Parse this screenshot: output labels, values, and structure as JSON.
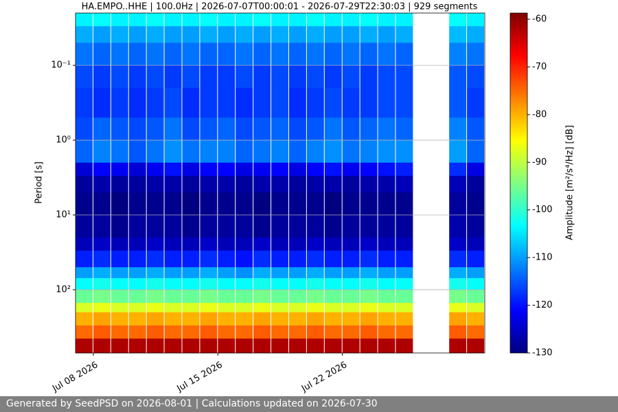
{
  "chart_data": {
    "type": "heatmap",
    "title": "HA.EMPO..HHE | 100.0Hz | 2026-07-07T00:00:01 - 2026-07-29T22:30:03 | 929 segments",
    "ylabel": "Period [s]",
    "colorbar_label": "Amplitude [m²/s⁴/Hz] [dB]",
    "colormap": "jet",
    "x": [
      "2026-07-07",
      "2026-07-08",
      "2026-07-09",
      "2026-07-10",
      "2026-07-11",
      "2026-07-12",
      "2026-07-13",
      "2026-07-14",
      "2026-07-15",
      "2026-07-16",
      "2026-07-17",
      "2026-07-18",
      "2026-07-19",
      "2026-07-20",
      "2026-07-21",
      "2026-07-22",
      "2026-07-23",
      "2026-07-24",
      "2026-07-25",
      "2026-07-26",
      "2026-07-27",
      "2026-07-28",
      "2026-07-29"
    ],
    "xlim": [
      "2026-07-07",
      "2026-07-30"
    ],
    "xticks": [
      {
        "value": "2026-07-08",
        "label": "Jul 08 2026"
      },
      {
        "value": "2026-07-15",
        "label": "Jul 15 2026"
      },
      {
        "value": "2026-07-22",
        "label": "Jul 22 2026"
      }
    ],
    "y_edges": [
      0.02,
      0.03,
      0.05,
      0.1,
      0.2,
      0.5,
      1,
      2,
      3,
      5,
      10,
      20,
      30,
      50,
      70,
      100,
      150,
      200,
      300,
      450,
      700
    ],
    "ylim": [
      0.02,
      700
    ],
    "yscale": "log",
    "y_inverted": true,
    "yticks": [
      {
        "value": 0.1,
        "label": "10⁻¹"
      },
      {
        "value": 1,
        "label": "10⁰"
      },
      {
        "value": 10,
        "label": "10¹"
      },
      {
        "value": 100,
        "label": "10²"
      }
    ],
    "grid": true,
    "clim": [
      -130,
      -58.7
    ],
    "cticks": [
      -60,
      -70,
      -80,
      -90,
      -100,
      -110,
      -120,
      -130
    ],
    "values": [
      [
        -104,
        -103,
        -104,
        -104,
        -103,
        -104,
        -104,
        -103,
        -104,
        -104,
        -103,
        -104,
        -104,
        -103,
        -104,
        -104,
        -103,
        -104,
        -104,
        null,
        null,
        -103,
        -104
      ],
      [
        -109,
        -110,
        -109,
        -110,
        -109,
        -110,
        -110,
        -109,
        -110,
        -109,
        -110,
        -109,
        -110,
        -109,
        -110,
        -110,
        -109,
        -110,
        -109,
        null,
        null,
        -108,
        -109
      ],
      [
        -113,
        -114,
        -113,
        -114,
        -113,
        -114,
        -113,
        -114,
        -114,
        -113,
        -114,
        -113,
        -114,
        -113,
        -114,
        -113,
        -114,
        -113,
        -114,
        null,
        null,
        -112,
        -113
      ],
      [
        -116,
        -117,
        -116,
        -117,
        -116,
        -117,
        -116,
        -117,
        -117,
        -116,
        -117,
        -116,
        -117,
        -116,
        -117,
        -116,
        -117,
        -116,
        -116,
        null,
        null,
        -115,
        -116
      ],
      [
        -117,
        -118,
        -117,
        -118,
        -117,
        -116,
        -118,
        -117,
        -117,
        -118,
        -117,
        -116,
        -118,
        -117,
        -116,
        -117,
        -117,
        -116,
        -116,
        null,
        null,
        -115,
        -117
      ],
      [
        -116,
        -114,
        -115,
        -116,
        -115,
        -113,
        -116,
        -115,
        -114,
        -116,
        -115,
        -114,
        -116,
        -115,
        -113,
        -115,
        -114,
        -113,
        -114,
        null,
        null,
        -112,
        -115
      ],
      [
        -114,
        -112,
        -113,
        -115,
        -113,
        -111,
        -113,
        -112,
        -112,
        -114,
        -113,
        -112,
        -114,
        -112,
        -111,
        -113,
        -112,
        -111,
        -111,
        null,
        null,
        -110,
        -114
      ],
      [
        -124,
        -121,
        -122,
        -124,
        -122,
        -120,
        -123,
        -121,
        -121,
        -123,
        -122,
        -121,
        -123,
        -121,
        -120,
        -122,
        -121,
        -120,
        -119,
        null,
        null,
        -118,
        -123
      ],
      [
        -128,
        -127,
        -128,
        -128,
        -127,
        -127,
        -128,
        -127,
        -127,
        -128,
        -127,
        -127,
        -128,
        -127,
        -127,
        -128,
        -127,
        -127,
        -126,
        null,
        null,
        -126,
        -128
      ],
      [
        -129,
        -129,
        -130,
        -129,
        -129,
        -129,
        -130,
        -129,
        -129,
        -129,
        -130,
        -129,
        -129,
        -129,
        -130,
        -129,
        -129,
        -129,
        -129,
        null,
        null,
        -128,
        -129
      ],
      [
        -128,
        -128,
        -129,
        -128,
        -128,
        -128,
        -129,
        -128,
        -128,
        -128,
        -129,
        -128,
        -128,
        -128,
        -129,
        -128,
        -128,
        -128,
        -128,
        null,
        null,
        -127,
        -128
      ],
      [
        -126,
        -125,
        -126,
        -126,
        -125,
        -126,
        -126,
        -125,
        -126,
        -126,
        -125,
        -126,
        -126,
        -125,
        -126,
        -126,
        -125,
        -126,
        -126,
        null,
        null,
        -125,
        -126
      ],
      [
        -119,
        -118,
        -119,
        -119,
        -118,
        -119,
        -119,
        -118,
        -119,
        -120,
        -118,
        -119,
        -119,
        -118,
        -119,
        -119,
        -118,
        -119,
        -119,
        null,
        null,
        -118,
        -119
      ],
      [
        -110,
        -109,
        -110,
        -110,
        -109,
        -110,
        -110,
        -109,
        -110,
        -111,
        -109,
        -110,
        -110,
        -109,
        -110,
        -110,
        -109,
        -110,
        -110,
        null,
        null,
        -109,
        -110
      ],
      [
        -103,
        -102,
        -103,
        -103,
        -102,
        -103,
        -103,
        -102,
        -103,
        -103,
        -102,
        -103,
        -103,
        -102,
        -103,
        -103,
        -102,
        -103,
        -103,
        null,
        null,
        -102,
        -103
      ],
      [
        -96,
        -95,
        -96,
        -96,
        -95,
        -96,
        -96,
        -95,
        -96,
        -96,
        -95,
        -96,
        -96,
        -95,
        -96,
        -96,
        -95,
        -96,
        -96,
        null,
        null,
        -95,
        -96
      ],
      [
        -88,
        -87,
        -88,
        -88,
        -87,
        -88,
        -88,
        -87,
        -88,
        -88,
        -87,
        -88,
        -88,
        -87,
        -88,
        -88,
        -87,
        -88,
        -88,
        null,
        null,
        -87,
        -88
      ],
      [
        -80,
        -79,
        -80,
        -80,
        -79,
        -80,
        -80,
        -79,
        -80,
        -80,
        -79,
        -80,
        -80,
        -79,
        -80,
        -80,
        -79,
        -80,
        -80,
        null,
        null,
        -79,
        -80
      ],
      [
        -75,
        -74,
        -75,
        -75,
        -74,
        -75,
        -75,
        -74,
        -75,
        -75,
        -74,
        -75,
        -75,
        -74,
        -75,
        -75,
        -74,
        -75,
        -75,
        null,
        null,
        -74,
        -75
      ],
      [
        -62,
        -62,
        -62,
        -62,
        -62,
        -62,
        -62,
        -62,
        -62,
        -62,
        -62,
        -62,
        -62,
        -62,
        -62,
        -62,
        -62,
        -62,
        -62,
        null,
        null,
        -62,
        -62
      ]
    ]
  },
  "footer": "Generated by SeedPSD on 2026-08-01 | Calculations updated on 2026-07-30"
}
